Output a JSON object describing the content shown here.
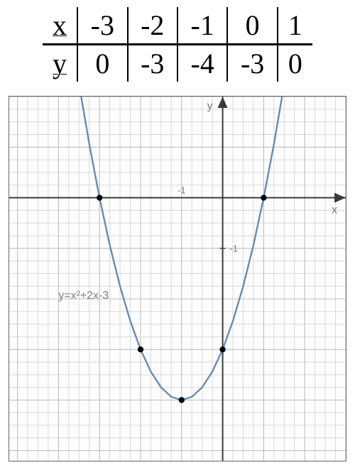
{
  "table": {
    "row_labels": [
      "x",
      "y"
    ],
    "x_vals": [
      "-3",
      "-2",
      "-1",
      "0",
      "1"
    ],
    "y_vals": [
      "0",
      "-3",
      "-4",
      "-3",
      "0"
    ],
    "font_size": 40,
    "rule_color": "#000000"
  },
  "chart": {
    "type": "line",
    "equation_label": "y=x²+2x-3",
    "x_axis_label": "x",
    "y_axis_label": "y",
    "x_minor_tick_label": "-1",
    "y_minor_tick_label": "-1",
    "xlim": [
      -5.2,
      3.0
    ],
    "ylim": [
      -5.2,
      2.0
    ],
    "minor_grid_step": 0.25,
    "major_grid_step": 1.0,
    "background_color": "#fdfdfd",
    "minor_grid_color": "#d9d9d9",
    "major_grid_color": "#bfbfbf",
    "axis_color": "#3a3a3a",
    "curve_color": "#6a8bb0",
    "curve_width": 2.4,
    "point_color": "#000000",
    "point_radius": 4.2,
    "label_color": "#7a7a7a",
    "eq_label_color": "#808080",
    "label_fontsize": 16,
    "eq_fontsize": 16,
    "points": [
      {
        "x": -3,
        "y": 0
      },
      {
        "x": -2,
        "y": -3
      },
      {
        "x": -1,
        "y": -4
      },
      {
        "x": 0,
        "y": -3
      },
      {
        "x": 1,
        "y": 0
      }
    ],
    "curve_samples_x": [
      -3.5,
      -3.25,
      -3,
      -2.75,
      -2.5,
      -2.25,
      -2,
      -1.75,
      -1.5,
      -1.25,
      -1,
      -0.75,
      -0.5,
      -0.25,
      0,
      0.25,
      0.5,
      0.75,
      1,
      1.25,
      1.5
    ]
  }
}
